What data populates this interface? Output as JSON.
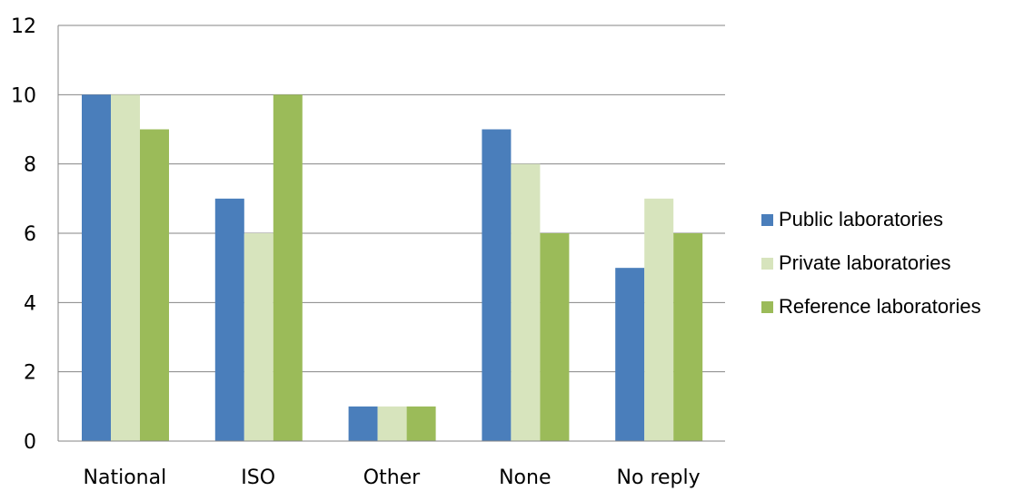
{
  "chart_data": {
    "type": "bar",
    "categories": [
      "National",
      "ISO",
      "Other",
      "None",
      "No reply"
    ],
    "series": [
      {
        "name": "Public laboratories",
        "values": [
          10,
          7,
          1,
          9,
          5
        ],
        "color": "#4a7ebb"
      },
      {
        "name": "Private laboratories",
        "values": [
          10,
          6,
          1,
          8,
          7
        ],
        "color": "#d7e4bd"
      },
      {
        "name": "Reference laboratories",
        "values": [
          9,
          10,
          1,
          6,
          6
        ],
        "color": "#9bbb59"
      }
    ],
    "y_ticks": [
      "0",
      "2",
      "4",
      "6",
      "8",
      "10",
      "12"
    ],
    "ylim": [
      0,
      12
    ],
    "grid": true,
    "legend_position": "right"
  }
}
